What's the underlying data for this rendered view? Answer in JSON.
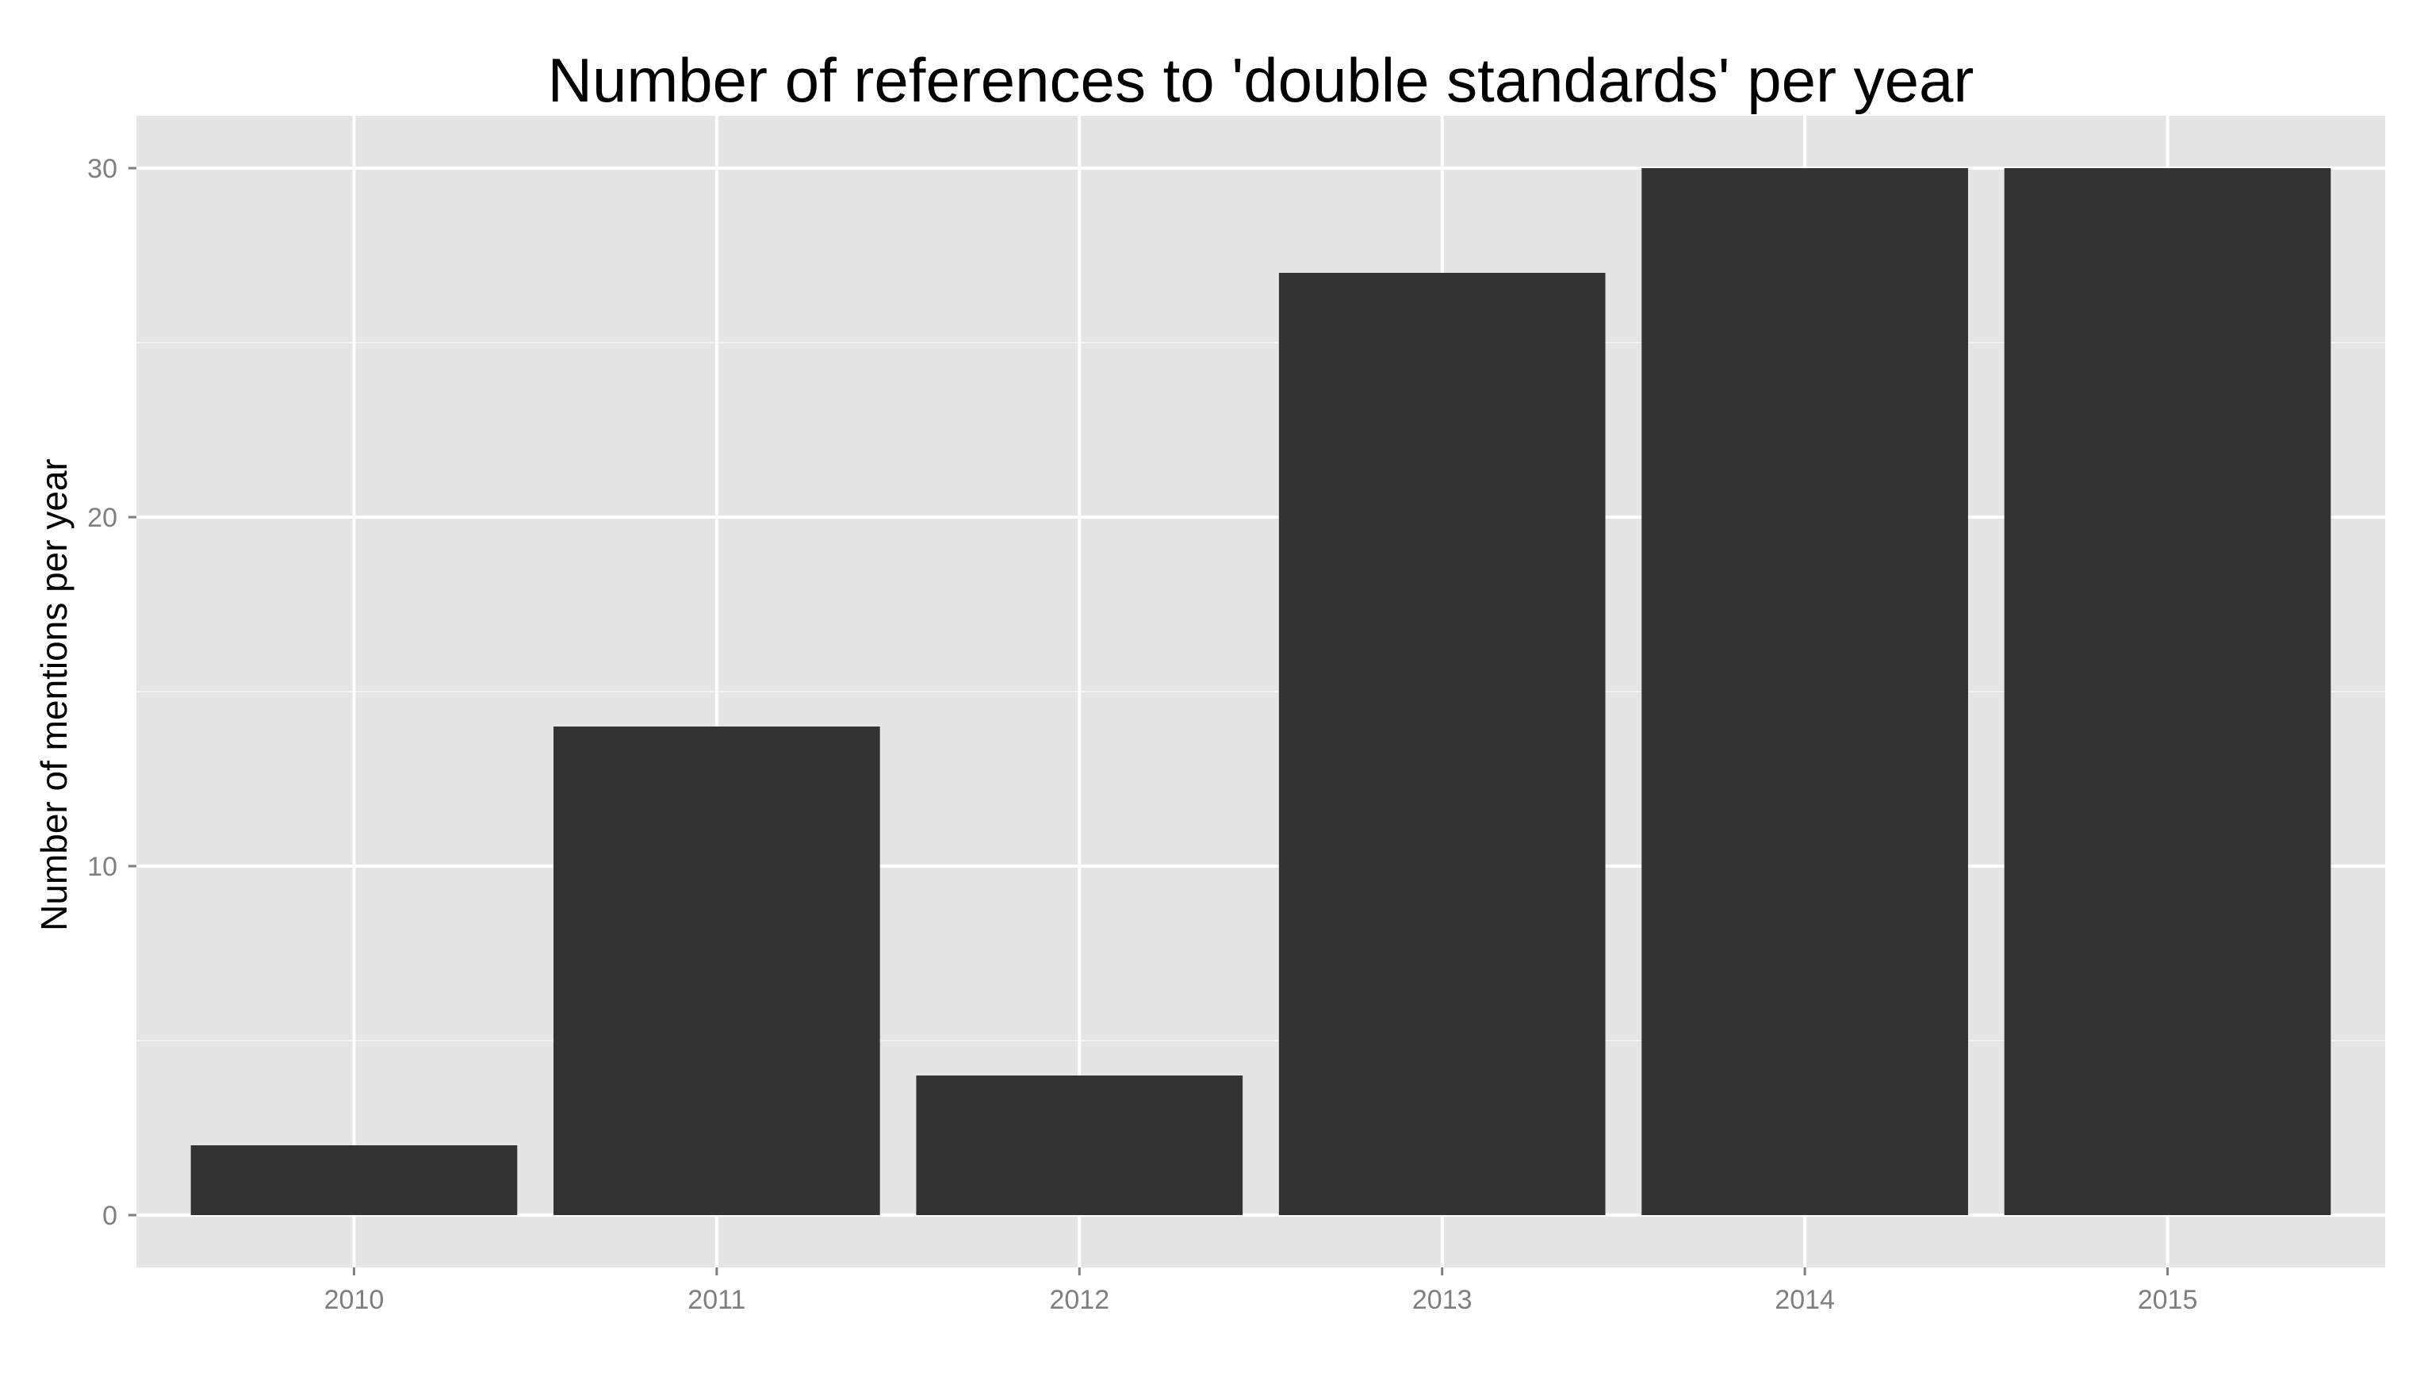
{
  "chart_data": {
    "type": "bar",
    "title": "Number of references to 'double standards' per year",
    "xlabel": "",
    "ylabel": "Number of mentions per year",
    "categories": [
      "2010",
      "2011",
      "2012",
      "2013",
      "2014",
      "2015"
    ],
    "values": [
      2,
      14,
      4,
      27,
      30,
      30
    ],
    "ylim": [
      -1.5,
      31.5
    ],
    "yticks": [
      0,
      10,
      20,
      30
    ],
    "grid": true,
    "legend": "none",
    "colors": {
      "panel_background": "#e5e5e5",
      "grid_major": "#ffffff",
      "grid_minor": "#f2f2f2",
      "bar_fill": "#333333",
      "tick_label": "#7f7f7f",
      "axis_tick": "#7f7f7f"
    }
  }
}
